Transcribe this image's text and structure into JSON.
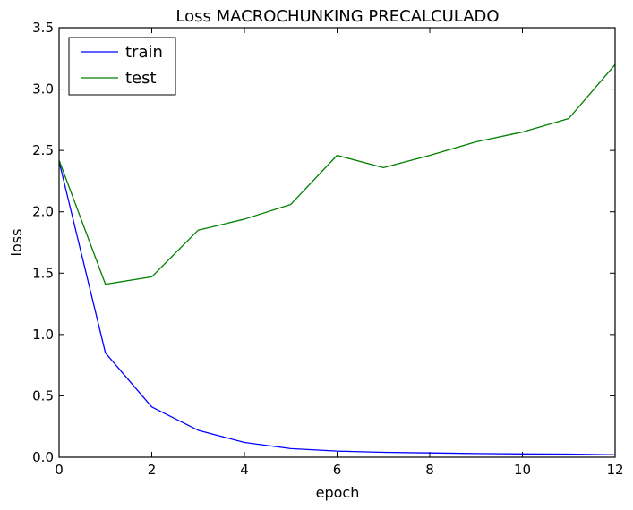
{
  "chart_data": {
    "type": "line",
    "title": "Loss MACROCHUNKING PRECALCULADO",
    "xlabel": "epoch",
    "ylabel": "loss",
    "xlim": [
      0,
      12
    ],
    "ylim": [
      0,
      3.5
    ],
    "xticks": [
      "0",
      "2",
      "4",
      "6",
      "8",
      "10",
      "12"
    ],
    "yticks": [
      "0.0",
      "0.5",
      "1.0",
      "1.5",
      "2.0",
      "2.5",
      "3.0",
      "3.5"
    ],
    "grid": false,
    "legend_position": "top-left",
    "x": [
      0,
      1,
      2,
      3,
      4,
      5,
      6,
      7,
      8,
      9,
      10,
      11,
      12
    ],
    "series": [
      {
        "name": "train",
        "color": "#0000ff",
        "values": [
          2.41,
          0.85,
          0.41,
          0.22,
          0.12,
          0.07,
          0.05,
          0.04,
          0.035,
          0.03,
          0.027,
          0.025,
          0.02
        ]
      },
      {
        "name": "test",
        "color": "#008000",
        "values": [
          2.42,
          1.41,
          1.47,
          1.85,
          1.94,
          2.06,
          2.46,
          2.36,
          2.46,
          2.57,
          2.65,
          2.76,
          3.2
        ]
      }
    ]
  }
}
